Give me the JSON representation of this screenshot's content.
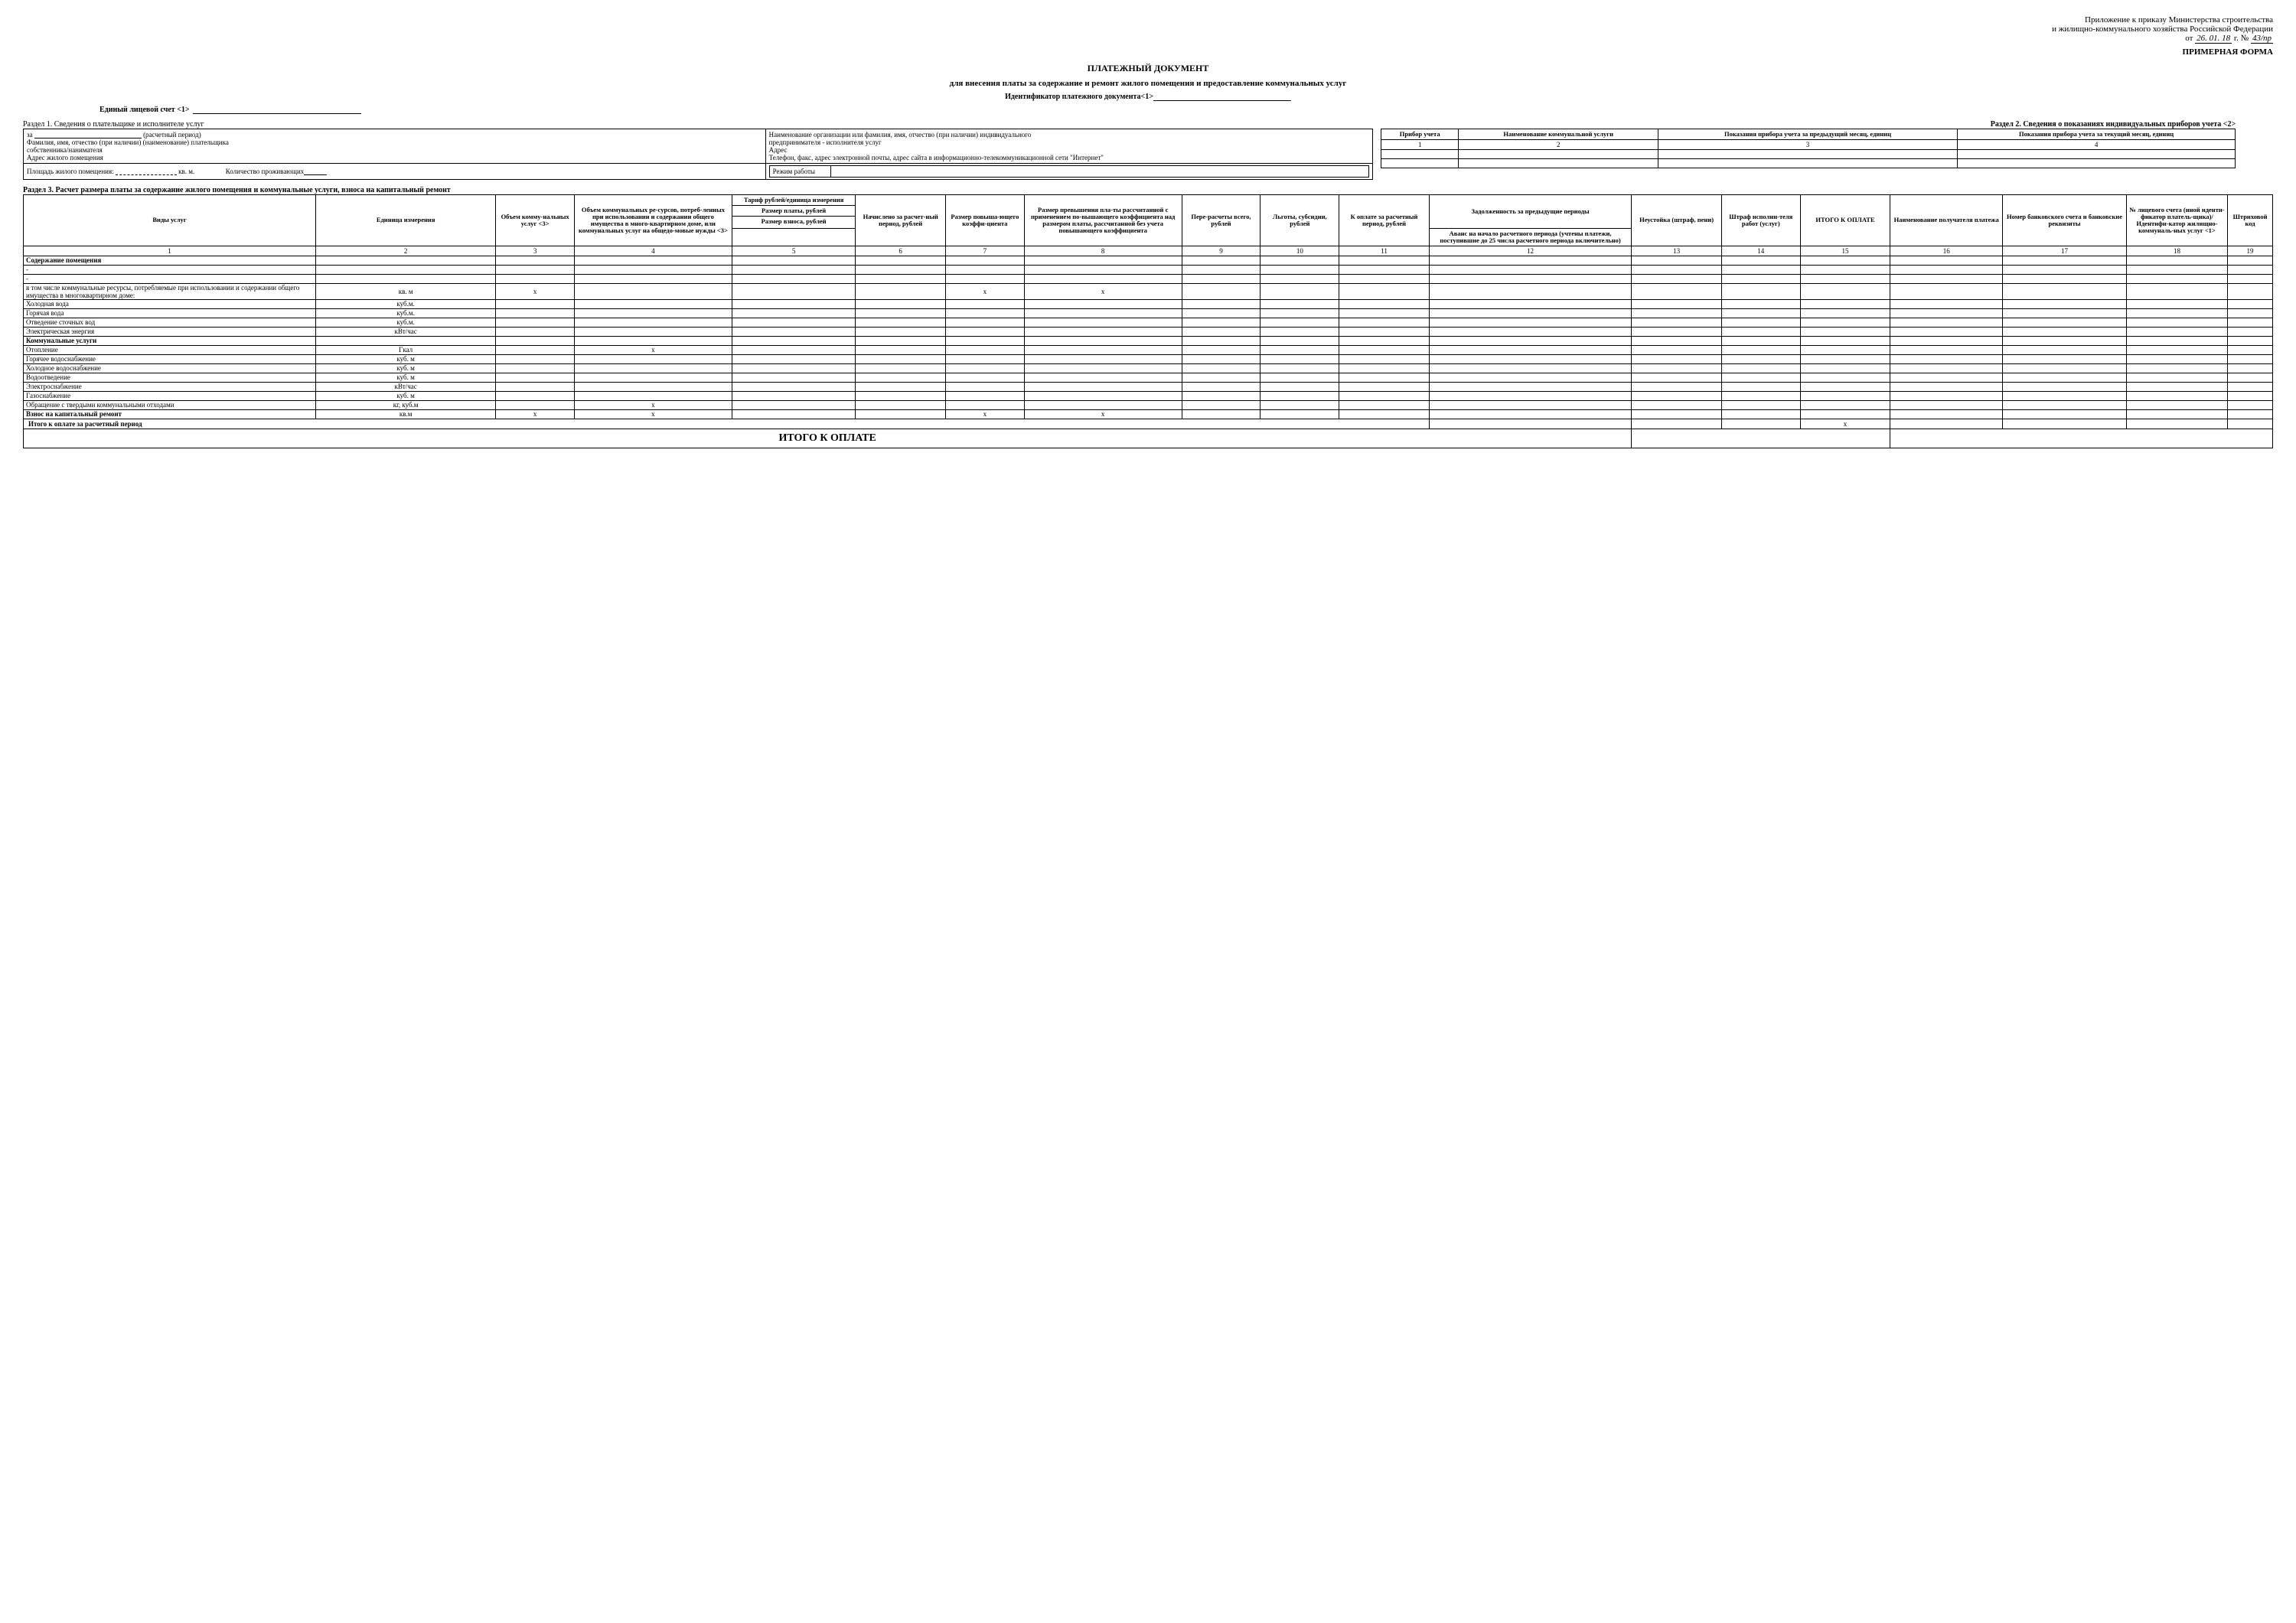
{
  "header": {
    "line1": "Приложение к приказу Министерства строительства",
    "line2": "и жилищно-коммунального хозяйства Российской Федерации",
    "from": "от",
    "date_hand": "26. 01. 18",
    "year_suffix": "г. №",
    "num_hand": "43/пр",
    "form": "ПРИМЕРНАЯ ФОРМА"
  },
  "title": "ПЛАТЕЖНЫЙ ДОКУМЕНТ",
  "subtitle": "для внесения платы за содержание и ремонт жилого помещения и предоставление коммунальных услуг",
  "doc_id_label": "Идентификатор платежного документа<1>",
  "account_label": "Единый лицевой счет <1>",
  "section1": {
    "heading": "Раздел 1.   Сведения о плательщике и исполнителе услуг",
    "left": {
      "za": "за",
      "period": "(расчетный период)",
      "fio": "Фамилия, имя, отчество (при наличии) (наименование) плательщика",
      "owner": "собственника/нанимателя",
      "addr": "Адрес жилого помещения",
      "area": "Площадь жилого помещения:",
      "area_unit": "кв. м.",
      "residents": "Количество проживающих"
    },
    "right": {
      "org": "Наименование организации или фамилия, имя, отчество (при наличии) индивидуального",
      "org2": "предпринимателя - исполнителя услуг",
      "addr": "Адрес",
      "contacts": "Телефон, факс, адрес электронной почты, адрес сайта в информационно-телекоммуникационной сети \"Интернет\"",
      "mode": "Режим работы"
    }
  },
  "section2": {
    "heading": "Раздел 2. Сведения о показаниях индивидуальных приборов учета <2>",
    "cols": [
      "Прибор учета",
      "Наименование коммунальной услуги",
      "Показания прибора учета за предыдущий месяц, единиц",
      "Показания прибора учета за текущий месяц, единиц"
    ],
    "nums": [
      "1",
      "2",
      "3",
      "4"
    ]
  },
  "section3": {
    "heading": "Раздел 3.   Расчет размера платы за содержание жилого помещения и коммунальные услуги, взноса на капитальный ремонт",
    "headers": {
      "c1": "Виды услуг",
      "c2": "Единица измерения",
      "c3": "Объем комму-нальных услуг <3>",
      "c4": "Объем коммунальных ре-сурсов, потреб-ленных при использовании и содержании общего имущества в много-квартирном доме, или коммунальных услуг на общедо-мовые нужды <3>",
      "c5a": "Тариф рублей/единица измерения",
      "c5b": "Размер платы, рублей",
      "c5c": "Размер взноса, рублей",
      "c6": "Начислено за расчет-ный период, рублей",
      "c7": "Размер повыша-ющего коэффи-циента",
      "c8": "Размер превышения пла-ты рассчитанной с применением по-вышающего коэффициента над размером платы, рассчитанной без учета повышающего коэффициента",
      "c9": "Пере-расчеты всего, рублей",
      "c10": "Льготы, субсидии, рублей",
      "c11": "К оплате за расчетный период, рублей",
      "c12a": "Задолженность за предыдущие периоды",
      "c12b": "Аванс на начало расчетного периода (учтены платежи, поступившие до 25 числа расчетного периода включительно)",
      "c13": "Неустойка (штраф, пени)",
      "c14": "Штраф исполни-теля работ (услуг)",
      "c15": "ИТОГО К ОПЛАТЕ",
      "c16": "Наименование получателя платежа",
      "c17": "Номер банковского счета и банковские реквизиты",
      "c18": "№ лицевого счета (иной иденти-фикатор платель-щика)/ Идентифи-катор жилищно-коммуналь-ных услуг <1>",
      "c19": "Штриховой код"
    },
    "nums": [
      "1",
      "2",
      "3",
      "4",
      "5",
      "6",
      "7",
      "8",
      "9",
      "10",
      "11",
      "12",
      "13",
      "14",
      "15",
      "16",
      "17",
      "18",
      "19"
    ],
    "rows": [
      {
        "name": "Содержание помещения",
        "unit": "",
        "bold": true
      },
      {
        "name": "-",
        "unit": ""
      },
      {
        "name": "-",
        "unit": ""
      },
      {
        "name": "в том числе коммунальные ресурсы, потребляемые при использовании и содержании общего имущества в многоквартирном доме:",
        "unit": "кв. м",
        "x3": "x",
        "x7": "x",
        "x8": "x"
      },
      {
        "name": "Холодная вода",
        "unit": "куб.м."
      },
      {
        "name": "Горячая вода",
        "unit": "куб.м."
      },
      {
        "name": "Отведение сточных вод",
        "unit": "куб.м."
      },
      {
        "name": "Электрическая энергия",
        "unit": "кВт/час"
      },
      {
        "name": "Коммунальные услуги",
        "unit": "",
        "bold": true
      },
      {
        "name": "Отопление",
        "unit": "Гкал",
        "x4": "x"
      },
      {
        "name": "Горячее водоснабжение",
        "unit": "куб. м"
      },
      {
        "name": "Холодное водоснабжение",
        "unit": "куб. м"
      },
      {
        "name": "Водоотведение",
        "unit": "куб. м"
      },
      {
        "name": "Электроснабжение",
        "unit": "кВт/час"
      },
      {
        "name": "Газоснабжение",
        "unit": "куб. м"
      },
      {
        "name": "Обращение с твердыми коммунальными отходами",
        "unit": "кг, куб.м",
        "x4": "x"
      },
      {
        "name": "Взнос на капитальный ремонт",
        "unit": "кв.м",
        "bold": true,
        "x3": "x",
        "x4": "x",
        "x7": "x",
        "x8": "x"
      }
    ],
    "total_row": "Итого к оплате за расчетный период",
    "total_x15": "x",
    "grand_total": "ИТОГО К ОПЛАТЕ"
  }
}
